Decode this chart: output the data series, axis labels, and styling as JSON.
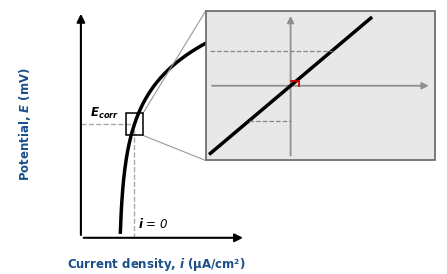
{
  "bg_color": "#ffffff",
  "inset_bg_color": "#e8e8e8",
  "main_curve_color": "#000000",
  "inset_line_color": "#000000",
  "inset_axis_color": "#909090",
  "ecorr_line_color": "#aaaaaa",
  "rp_color": "#cc0000",
  "annotation_color": "#cc6600",
  "label_color": "#1a4f8a",
  "figsize": [
    4.47,
    2.74
  ],
  "dpi": 100
}
